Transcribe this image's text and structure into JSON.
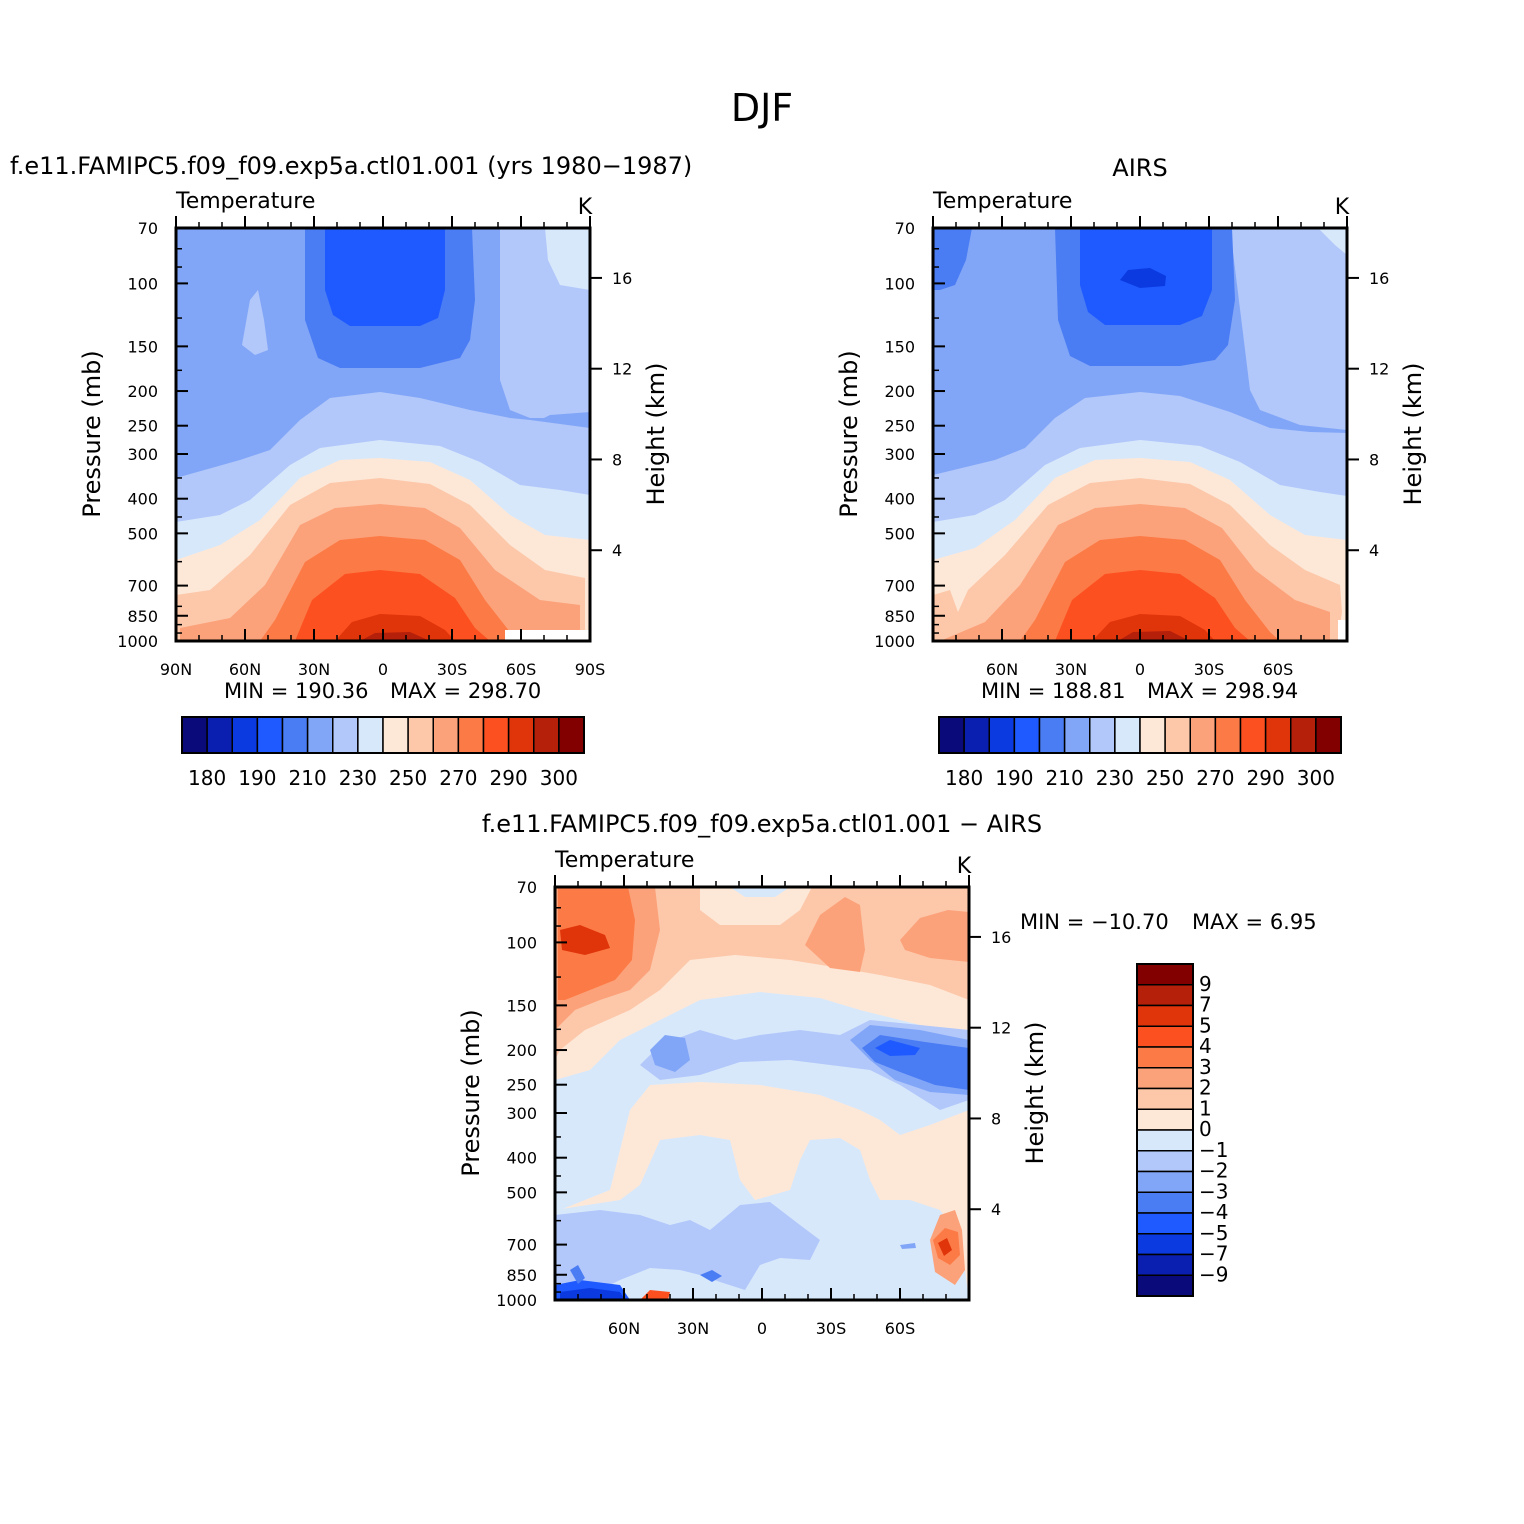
{
  "figure": {
    "title": "DJF",
    "plot_title_a": "f.e11.FAMIPC5.f09_f09.exp5a.ctl01.001  (yrs  1980−1987)",
    "plot_title_b": "AIRS",
    "plot_title_c": "f.e11.FAMIPC5.f09_f09.exp5a.ctl01.001  −  AIRS"
  },
  "palettes": {
    "temperature": [
      "#0a0a7a",
      "#0a1eb0",
      "#0a3ae0",
      "#1e5aff",
      "#4a7cf4",
      "#82a6f7",
      "#b2c8fa",
      "#d8e8fb",
      "#fde8d8",
      "#fdc8aa",
      "#fca27a",
      "#fc7a46",
      "#fc5020",
      "#e0340a",
      "#b4200a",
      "#820000"
    ],
    "difference": [
      "#0a0a7a",
      "#0a1eb0",
      "#0a3ae0",
      "#1e5aff",
      "#4a7cf4",
      "#82a6f7",
      "#b2c8fa",
      "#d8e8fb",
      "#fde8d8",
      "#fdc8aa",
      "#fca27a",
      "#fc7a46",
      "#fc5020",
      "#e0340a",
      "#b4200a",
      "#820000"
    ]
  },
  "chart_data": [
    {
      "type": "contour",
      "name": "model",
      "left_label": "Temperature",
      "right_label": "K",
      "ylabel": "Pressure  (mb)",
      "ylabel_right": "Height  (km)",
      "x_ticks": [
        "90N",
        "60N",
        "30N",
        "0",
        "30S",
        "60S",
        "90S"
      ],
      "y_ticks": [
        "70",
        "100",
        "150",
        "200",
        "250",
        "300",
        "400",
        "500",
        "700",
        "850",
        "1000"
      ],
      "y_ticks_right": [
        "4",
        "8",
        "12",
        "16"
      ],
      "min_label": "MIN  =  190.36",
      "max_label": "MAX  =  298.70",
      "min": 190.36,
      "max": 298.7,
      "colorbar_labels": [
        "180",
        "190",
        "210",
        "230",
        "250",
        "270",
        "290",
        "300"
      ]
    },
    {
      "type": "contour",
      "name": "obs",
      "left_label": "Temperature",
      "right_label": "K",
      "ylabel": "Pressure  (mb)",
      "ylabel_right": "Height  (km)",
      "x_ticks": [
        "60N",
        "30N",
        "0",
        "30S",
        "60S"
      ],
      "y_ticks": [
        "70",
        "100",
        "150",
        "200",
        "250",
        "300",
        "400",
        "500",
        "700",
        "850",
        "1000"
      ],
      "y_ticks_right": [
        "4",
        "8",
        "12",
        "16"
      ],
      "min_label": "MIN  =  188.81",
      "max_label": "MAX  =  298.94",
      "min": 188.81,
      "max": 298.94,
      "colorbar_labels": [
        "180",
        "190",
        "210",
        "230",
        "250",
        "270",
        "290",
        "300"
      ]
    },
    {
      "type": "contour",
      "name": "difference",
      "left_label": "Temperature",
      "right_label": "K",
      "ylabel": "Pressure  (mb)",
      "ylabel_right": "Height  (km)",
      "x_ticks": [
        "60N",
        "30N",
        "0",
        "30S",
        "60S"
      ],
      "y_ticks": [
        "70",
        "100",
        "150",
        "200",
        "250",
        "300",
        "400",
        "500",
        "700",
        "850",
        "1000"
      ],
      "y_ticks_right": [
        "4",
        "8",
        "12",
        "16"
      ],
      "min_label": "MIN  =  −10.70",
      "max_label": "MAX  =     6.95",
      "min": -10.7,
      "max": 6.95,
      "colorbar_labels": [
        "9",
        "7",
        "5",
        "4",
        "3",
        "2",
        "1",
        "0",
        "−1",
        "−2",
        "−3",
        "−4",
        "−5",
        "−7",
        "−9"
      ]
    }
  ]
}
